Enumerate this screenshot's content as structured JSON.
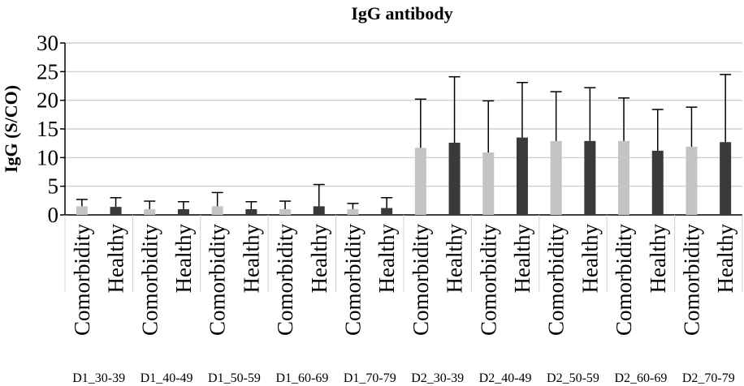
{
  "chart_data": {
    "type": "bar",
    "title": "IgG antibody",
    "ylabel": "IgG (S/CO)",
    "xlabel": "",
    "ylim": [
      0,
      30
    ],
    "yticks": [
      0,
      5,
      10,
      15,
      20,
      25,
      30
    ],
    "grid": true,
    "groups": [
      {
        "label": "D1_30-39",
        "bars": [
          {
            "category": "Comorbidity",
            "value": 1.5,
            "error": 1.2
          },
          {
            "category": "Healthy",
            "value": 1.4,
            "error": 1.6
          }
        ]
      },
      {
        "label": "D1_40-49",
        "bars": [
          {
            "category": "Comorbidity",
            "value": 1.0,
            "error": 1.4
          },
          {
            "category": "Healthy",
            "value": 1.0,
            "error": 1.3
          }
        ]
      },
      {
        "label": "D1_50-59",
        "bars": [
          {
            "category": "Comorbidity",
            "value": 1.5,
            "error": 2.4
          },
          {
            "category": "Healthy",
            "value": 1.0,
            "error": 1.3
          }
        ]
      },
      {
        "label": "D1_60-69",
        "bars": [
          {
            "category": "Comorbidity",
            "value": 1.0,
            "error": 1.4
          },
          {
            "category": "Healthy",
            "value": 1.5,
            "error": 3.8
          }
        ]
      },
      {
        "label": "D1_70-79",
        "bars": [
          {
            "category": "Comorbidity",
            "value": 1.0,
            "error": 1.0
          },
          {
            "category": "Healthy",
            "value": 1.2,
            "error": 1.8
          }
        ]
      },
      {
        "label": "D2_30-39",
        "bars": [
          {
            "category": "Comorbidity",
            "value": 11.7,
            "error": 8.5
          },
          {
            "category": "Healthy",
            "value": 12.6,
            "error": 11.5
          }
        ]
      },
      {
        "label": "D2_40-49",
        "bars": [
          {
            "category": "Comorbidity",
            "value": 10.9,
            "error": 9.0
          },
          {
            "category": "Healthy",
            "value": 13.5,
            "error": 9.6
          }
        ]
      },
      {
        "label": "D2_50-59",
        "bars": [
          {
            "category": "Comorbidity",
            "value": 12.9,
            "error": 8.6
          },
          {
            "category": "Healthy",
            "value": 12.9,
            "error": 9.3
          }
        ]
      },
      {
        "label": "D2_60-69",
        "bars": [
          {
            "category": "Comorbidity",
            "value": 12.9,
            "error": 7.5
          },
          {
            "category": "Healthy",
            "value": 11.2,
            "error": 7.2
          }
        ]
      },
      {
        "label": "D2_70-79",
        "bars": [
          {
            "category": "Comorbidity",
            "value": 11.9,
            "error": 6.9
          },
          {
            "category": "Healthy",
            "value": 12.7,
            "error": 11.8
          }
        ]
      }
    ],
    "colors": {
      "Comorbidity": "#c4c4c4",
      "Healthy": "#3a3a3a",
      "grid": "#c8c8c8",
      "axis": "#000000"
    }
  }
}
